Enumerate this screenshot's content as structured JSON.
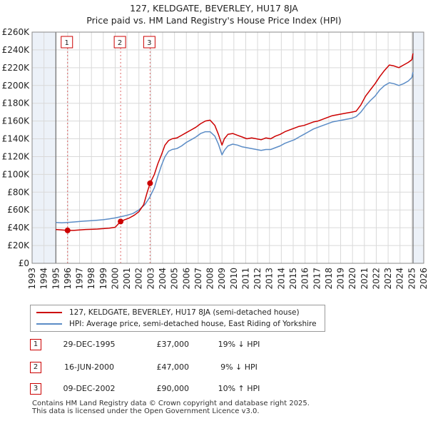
{
  "title": "127, KELDGATE, BEVERLEY, HU17 8JA",
  "subtitle": "Price paid vs. HM Land Registry's House Price Index (HPI)",
  "colors": {
    "price_paid": "#cc0000",
    "hpi": "#5b8cc6",
    "shade": "#dce6f2",
    "grid": "#d9d9d9"
  },
  "chart_data": {
    "type": "line",
    "title": "127, KELDGATE, BEVERLEY, HU17 8JA",
    "subtitle": "Price paid vs. HM Land Registry's House Price Index (HPI)",
    "xlim": [
      1993,
      2026
    ],
    "ylim": [
      0,
      260000
    ],
    "x_ticks": [
      1993,
      1994,
      1995,
      1996,
      1997,
      1998,
      1999,
      2000,
      2001,
      2002,
      2003,
      2004,
      2005,
      2006,
      2007,
      2008,
      2009,
      2010,
      2011,
      2012,
      2013,
      2014,
      2015,
      2016,
      2017,
      2018,
      2019,
      2020,
      2021,
      2022,
      2023,
      2024,
      2025,
      2026
    ],
    "y_ticks": [
      0,
      20000,
      40000,
      60000,
      80000,
      100000,
      120000,
      140000,
      160000,
      180000,
      200000,
      220000,
      240000,
      260000
    ],
    "y_tick_labels": [
      "£0",
      "£20K",
      "£40K",
      "£60K",
      "£80K",
      "£100K",
      "£120K",
      "£140K",
      "£160K",
      "£180K",
      "£200K",
      "£220K",
      "£240K",
      "£260K"
    ],
    "grid": true,
    "shaded_ranges": [
      [
        1993,
        1995.0
      ],
      [
        2025.1,
        2026
      ]
    ],
    "series": [
      {
        "name": "127, KELDGATE, BEVERLEY, HU17 8JA (semi-detached house)",
        "color": "#cc0000",
        "x": [
          1995.0,
          1995.5,
          1995.99,
          1996.5,
          1997,
          1997.5,
          1998,
          1998.5,
          1999,
          1999.5,
          2000,
          2000.46,
          2000.8,
          2001.2,
          2001.6,
          2002,
          2002.4,
          2002.7,
          2002.94,
          2003.3,
          2003.6,
          2003.9,
          2004.2,
          2004.5,
          2004.8,
          2005.2,
          2005.6,
          2006,
          2006.4,
          2006.8,
          2007.2,
          2007.6,
          2008,
          2008.4,
          2008.7,
          2009.0,
          2009.2,
          2009.5,
          2009.9,
          2010.3,
          2010.7,
          2011.1,
          2011.5,
          2011.9,
          2012.3,
          2012.7,
          2013.1,
          2013.5,
          2013.9,
          2014.3,
          2014.7,
          2015.1,
          2015.5,
          2015.9,
          2016.3,
          2016.7,
          2017.1,
          2017.5,
          2017.9,
          2018.3,
          2018.7,
          2019.1,
          2019.5,
          2019.9,
          2020.3,
          2020.7,
          2021.1,
          2021.5,
          2021.9,
          2022.3,
          2022.7,
          2023.1,
          2023.5,
          2023.9,
          2024.3,
          2024.7,
          2025.0,
          2025.1
        ],
        "values": [
          38000,
          37500,
          37000,
          37000,
          37500,
          38000,
          38200,
          38500,
          39000,
          39500,
          40500,
          47000,
          49000,
          51000,
          54000,
          58000,
          66000,
          80000,
          90000,
          100000,
          112000,
          122000,
          133000,
          138000,
          140000,
          141000,
          144000,
          147000,
          150000,
          153000,
          157000,
          160000,
          161000,
          155000,
          145000,
          133000,
          140000,
          145000,
          146000,
          144000,
          142000,
          140000,
          141000,
          140000,
          139000,
          141000,
          140000,
          143000,
          145000,
          148000,
          150000,
          152000,
          154000,
          155000,
          157000,
          159000,
          160000,
          162000,
          164000,
          166000,
          167000,
          168000,
          169000,
          170000,
          171000,
          178000,
          188000,
          195000,
          202000,
          210000,
          217000,
          223000,
          222000,
          220000,
          223000,
          226000,
          229000,
          236000
        ],
        "sales": [
          [
            1995.99,
            37000
          ],
          [
            2000.46,
            47000
          ],
          [
            2002.94,
            90000
          ]
        ]
      },
      {
        "name": "HPI: Average price, semi-detached house, East Riding of Yorkshire",
        "color": "#5b8cc6",
        "x": [
          1995.0,
          1995.5,
          1996,
          1996.5,
          1997,
          1997.5,
          1998,
          1998.5,
          1999,
          1999.5,
          2000,
          2000.5,
          2001,
          2001.5,
          2002,
          2002.5,
          2002.9,
          2003.3,
          2003.6,
          2003.9,
          2004.2,
          2004.5,
          2004.8,
          2005.2,
          2005.6,
          2006,
          2006.4,
          2006.8,
          2007.2,
          2007.6,
          2008,
          2008.4,
          2008.7,
          2009.0,
          2009.2,
          2009.5,
          2009.9,
          2010.3,
          2010.7,
          2011.1,
          2011.5,
          2011.9,
          2012.3,
          2012.7,
          2013.1,
          2013.5,
          2013.9,
          2014.3,
          2014.7,
          2015.1,
          2015.5,
          2015.9,
          2016.3,
          2016.7,
          2017.1,
          2017.5,
          2017.9,
          2018.3,
          2018.7,
          2019.1,
          2019.5,
          2019.9,
          2020.3,
          2020.7,
          2021.1,
          2021.5,
          2021.9,
          2022.3,
          2022.7,
          2023.1,
          2023.5,
          2023.9,
          2024.3,
          2024.7,
          2025.0,
          2025.1
        ],
        "values": [
          46000,
          45500,
          46000,
          46500,
          47000,
          47500,
          48000,
          48500,
          49000,
          50000,
          51000,
          52500,
          54000,
          56000,
          60000,
          66000,
          74000,
          85000,
          98000,
          110000,
          120000,
          126000,
          128000,
          129000,
          132000,
          136000,
          139000,
          142000,
          146000,
          148000,
          148000,
          143000,
          134000,
          122000,
          127000,
          132000,
          134000,
          133000,
          131000,
          130000,
          129000,
          128000,
          127000,
          128000,
          128000,
          130000,
          132000,
          135000,
          137000,
          139000,
          142000,
          145000,
          148000,
          151000,
          153000,
          155000,
          157000,
          159000,
          160000,
          161000,
          162000,
          163000,
          165000,
          170000,
          177000,
          183000,
          188000,
          195000,
          200000,
          203000,
          202000,
          200000,
          202000,
          205000,
          209000,
          215000
        ]
      }
    ],
    "annotations": [
      {
        "label": "1",
        "x": 1995.99
      },
      {
        "label": "2",
        "x": 2000.46
      },
      {
        "label": "3",
        "x": 2002.94
      }
    ]
  },
  "legend": [
    {
      "label": "127, KELDGATE, BEVERLEY, HU17 8JA (semi-detached house)",
      "color": "#cc0000"
    },
    {
      "label": "HPI: Average price, semi-detached house, East Riding of Yorkshire",
      "color": "#5b8cc6"
    }
  ],
  "sales": [
    {
      "num": "1",
      "date": "29-DEC-1995",
      "price": "£37,000",
      "hpi": "19% ↓ HPI"
    },
    {
      "num": "2",
      "date": "16-JUN-2000",
      "price": "£47,000",
      "hpi": "9% ↓ HPI"
    },
    {
      "num": "3",
      "date": "09-DEC-2002",
      "price": "£90,000",
      "hpi": "10% ↑ HPI"
    }
  ],
  "footer": {
    "line1": "Contains HM Land Registry data © Crown copyright and database right 2025.",
    "line2": "This data is licensed under the Open Government Licence v3.0."
  }
}
